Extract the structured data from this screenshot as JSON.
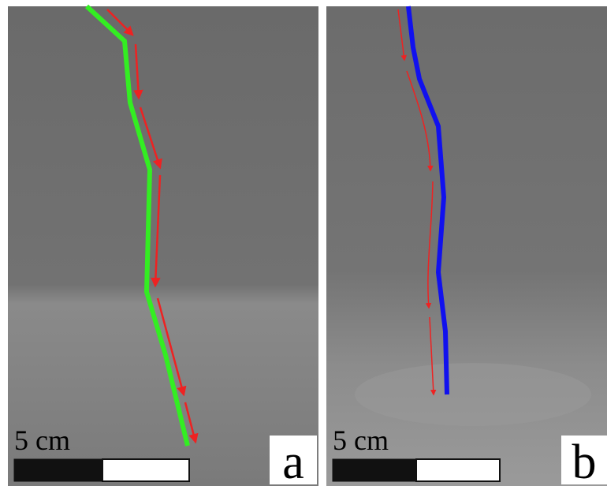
{
  "panels": [
    {
      "scale_label": "5 cm",
      "panel_label": "a"
    },
    {
      "scale_label": "5 cm",
      "panel_label": "b"
    }
  ]
}
